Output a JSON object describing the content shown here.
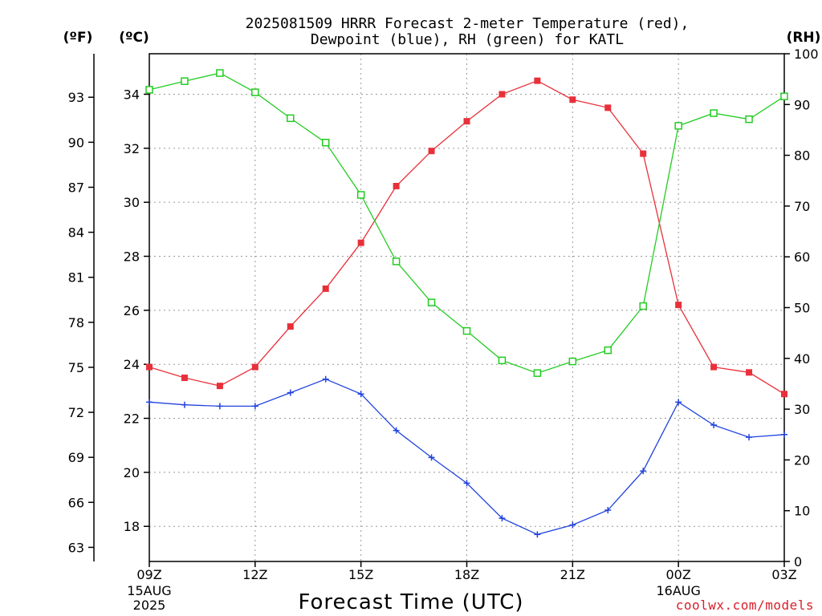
{
  "title_line1": "2025081509 HRRR Forecast 2-meter Temperature (red),",
  "title_line2": "Dewpoint (blue), RH (green) for KATL",
  "unit_f": "(ºF)",
  "unit_c": "(ºC)",
  "unit_rh": "(RH)",
  "x_title": "Forecast Time (UTC)",
  "credit": "coolwx.com/models",
  "colors": {
    "temperature": "#e8303a",
    "dewpoint": "#2244dd",
    "rh": "#22cc22",
    "grid": "#999999"
  },
  "chart_data": {
    "type": "line",
    "x_ticks": [
      {
        "label": "09Z",
        "sub": [
          "15AUG",
          "2025"
        ]
      },
      {
        "label": "12Z",
        "sub": []
      },
      {
        "label": "15Z",
        "sub": []
      },
      {
        "label": "18Z",
        "sub": []
      },
      {
        "label": "21Z",
        "sub": []
      },
      {
        "label": "00Z",
        "sub": [
          "16AUG"
        ]
      },
      {
        "label": "03Z",
        "sub": []
      }
    ],
    "x_hours": [
      9,
      10,
      11,
      12,
      13,
      14,
      15,
      16,
      17,
      18,
      19,
      20,
      21,
      22,
      23,
      24,
      25,
      26,
      27
    ],
    "xlim": [
      9,
      27
    ],
    "left_celsius_axis": {
      "ylim": [
        16.7,
        35.5
      ],
      "ticks": [
        "18",
        "20",
        "22",
        "24",
        "26",
        "28",
        "30",
        "32",
        "34"
      ]
    },
    "left_fahrenheit_axis": {
      "ticks": [
        "63",
        "66",
        "69",
        "72",
        "75",
        "78",
        "81",
        "84",
        "87",
        "90",
        "93"
      ]
    },
    "right_rh_axis": {
      "ylim": [
        0,
        100
      ],
      "ticks": [
        "0",
        "10",
        "20",
        "30",
        "40",
        "50",
        "60",
        "70",
        "80",
        "90",
        "100"
      ]
    },
    "grid": true,
    "series": [
      {
        "name": "Temperature",
        "axis": "celsius",
        "marker": "filled-square",
        "values": [
          23.9,
          23.5,
          23.2,
          23.9,
          25.4,
          26.8,
          28.5,
          30.6,
          31.9,
          33.0,
          34.0,
          34.5,
          33.8,
          33.5,
          31.8,
          26.2,
          23.9,
          23.7,
          22.9
        ]
      },
      {
        "name": "Dewpoint",
        "axis": "celsius",
        "marker": "plus",
        "values": [
          22.6,
          22.5,
          22.45,
          22.45,
          22.95,
          23.45,
          22.9,
          21.55,
          20.55,
          19.6,
          18.3,
          17.7,
          18.05,
          18.6,
          20.05,
          22.6,
          21.75,
          21.3,
          21.4
        ]
      },
      {
        "name": "RH",
        "axis": "rh",
        "marker": "open-square",
        "values": [
          92.9,
          94.6,
          96.2,
          92.4,
          87.3,
          82.5,
          72.2,
          59.1,
          51.0,
          45.4,
          39.6,
          37.1,
          39.4,
          41.6,
          50.3,
          85.8,
          88.3,
          87.1,
          91.6
        ]
      }
    ]
  }
}
